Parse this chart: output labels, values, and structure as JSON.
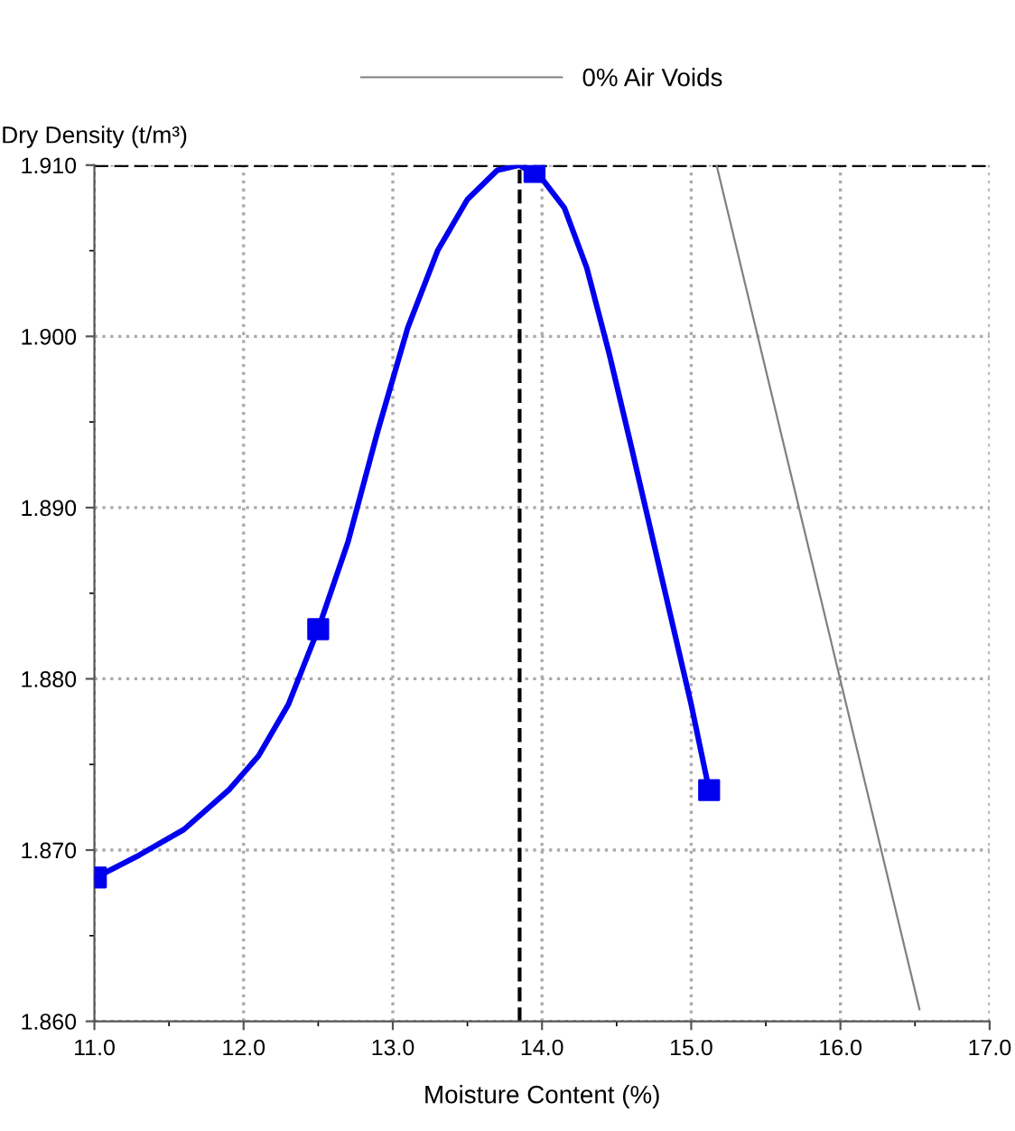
{
  "chart_data": {
    "type": "line",
    "xlabel": "Moisture Content (%)",
    "ylabel": "Dry Density (t/m³)",
    "xlim": [
      11.0,
      17.0
    ],
    "ylim": [
      1.86,
      1.91
    ],
    "xticks": [
      {
        "value": 11,
        "label": "11.0"
      },
      {
        "value": 12,
        "label": "12.0"
      },
      {
        "value": 13,
        "label": "13.0"
      },
      {
        "value": 14,
        "label": "14.0"
      },
      {
        "value": 15,
        "label": "15.0"
      },
      {
        "value": 16,
        "label": "16.0"
      },
      {
        "value": 17,
        "label": "17.0"
      }
    ],
    "yticks": [
      {
        "value": 1.86,
        "label": "1.860"
      },
      {
        "value": 1.87,
        "label": "1.870"
      },
      {
        "value": 1.88,
        "label": "1.880"
      },
      {
        "value": 1.89,
        "label": "1.890"
      },
      {
        "value": 1.9,
        "label": "1.900"
      },
      {
        "value": 1.91,
        "label": "1.910"
      }
    ],
    "grid": true,
    "legend": "top",
    "series": [
      {
        "color": "#0000ee",
        "marker": "none",
        "x": [
          11.01,
          11.3,
          11.6,
          11.9,
          12.1,
          12.3,
          12.5,
          12.7,
          12.9,
          13.1,
          13.3,
          13.5,
          13.7,
          13.85,
          14.0,
          14.15,
          14.3,
          14.45,
          14.6,
          14.8,
          15.0,
          15.12
        ],
        "values": [
          1.8684,
          1.8697,
          1.8712,
          1.8735,
          1.8755,
          1.8785,
          1.8829,
          1.888,
          1.8945,
          1.9005,
          1.905,
          1.908,
          1.9097,
          1.91,
          1.9092,
          1.9075,
          1.904,
          1.899,
          1.8935,
          1.886,
          1.8785,
          1.8735
        ]
      },
      {
        "type": "scatter",
        "color": "#0000ee",
        "marker": "square",
        "x": [
          11.01,
          12.5,
          13.95,
          15.12
        ],
        "values": [
          1.8684,
          1.8829,
          1.9096,
          1.8735
        ]
      },
      {
        "type": "line",
        "name": "0% Air Voids",
        "color": "#808080",
        "marker": "none",
        "x": [
          15.17,
          16.53
        ],
        "values": [
          1.91,
          1.8607
        ]
      }
    ],
    "ref_lines": [
      {
        "axis": "x",
        "value": 13.85,
        "color": "#000000",
        "line_style": "dashed"
      },
      {
        "axis": "y",
        "value": 1.91,
        "color": "#000000",
        "line_style": "dashed"
      }
    ]
  }
}
